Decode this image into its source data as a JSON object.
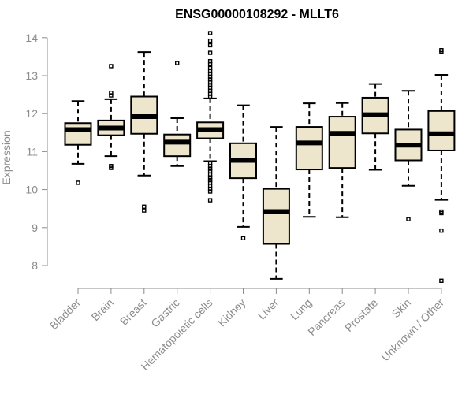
{
  "chart_data": {
    "type": "boxplot",
    "title": "ENSG00000108292 - MLLT6",
    "xlabel": "",
    "ylabel": "Expression",
    "ylim": [
      7.5,
      14.2
    ],
    "yticks": [
      8,
      9,
      10,
      11,
      12,
      13,
      14
    ],
    "grid": false,
    "colors": {
      "box_fill": "#ede6cd",
      "box_stroke": "#000000",
      "axis": "#8c8c8c"
    },
    "categories": [
      "Bladder",
      "Brain",
      "Breast",
      "Gastric",
      "Hematopoietic cells",
      "Kidney",
      "Liver",
      "Lung",
      "Pancreas",
      "Prostate",
      "Skin",
      "Unknown / Other"
    ],
    "series": [
      {
        "name": "Bladder",
        "min": 10.68,
        "q1": 11.18,
        "median": 11.58,
        "q3": 11.75,
        "max": 12.33,
        "outliers": [
          10.18
        ]
      },
      {
        "name": "Brain",
        "min": 10.88,
        "q1": 11.43,
        "median": 11.62,
        "q3": 11.82,
        "max": 12.38,
        "outliers": [
          13.25,
          12.55,
          12.48,
          10.62,
          10.57
        ]
      },
      {
        "name": "Breast",
        "min": 10.37,
        "q1": 11.47,
        "median": 11.92,
        "q3": 12.45,
        "max": 13.62,
        "outliers": [
          9.55,
          9.45
        ]
      },
      {
        "name": "Gastric",
        "min": 10.62,
        "q1": 10.88,
        "median": 11.25,
        "q3": 11.45,
        "max": 11.88,
        "outliers": [
          13.33
        ]
      },
      {
        "name": "Hematopoietic cells",
        "min": 10.75,
        "q1": 11.35,
        "median": 11.58,
        "q3": 11.77,
        "max": 12.4,
        "outliers": [
          14.12,
          13.92,
          13.8,
          13.6,
          13.38,
          13.3,
          13.2,
          13.12,
          13.05,
          12.97,
          12.9,
          12.82,
          12.75,
          12.68,
          12.6,
          12.52,
          12.45,
          10.7,
          10.62,
          10.55,
          10.48,
          10.4,
          10.32,
          10.25,
          10.18,
          10.1,
          10.02,
          9.95,
          9.72
        ]
      },
      {
        "name": "Kidney",
        "min": 9.02,
        "q1": 10.3,
        "median": 10.77,
        "q3": 11.22,
        "max": 12.22,
        "outliers": [
          8.72
        ]
      },
      {
        "name": "Liver",
        "min": 7.65,
        "q1": 8.57,
        "median": 9.42,
        "q3": 10.02,
        "max": 11.65,
        "outliers": []
      },
      {
        "name": "Lung",
        "min": 9.28,
        "q1": 10.53,
        "median": 11.23,
        "q3": 11.65,
        "max": 12.27,
        "outliers": []
      },
      {
        "name": "Pancreas",
        "min": 9.27,
        "q1": 10.57,
        "median": 11.48,
        "q3": 11.92,
        "max": 12.28,
        "outliers": []
      },
      {
        "name": "Prostate",
        "min": 10.52,
        "q1": 11.48,
        "median": 11.97,
        "q3": 12.42,
        "max": 12.78,
        "outliers": []
      },
      {
        "name": "Skin",
        "min": 10.1,
        "q1": 10.77,
        "median": 11.17,
        "q3": 11.58,
        "max": 12.6,
        "outliers": [
          9.22
        ]
      },
      {
        "name": "Unknown / Other",
        "min": 9.73,
        "q1": 11.03,
        "median": 11.47,
        "q3": 12.07,
        "max": 13.02,
        "outliers": [
          13.67,
          13.63,
          9.42,
          9.38,
          8.92,
          7.6
        ]
      }
    ]
  }
}
